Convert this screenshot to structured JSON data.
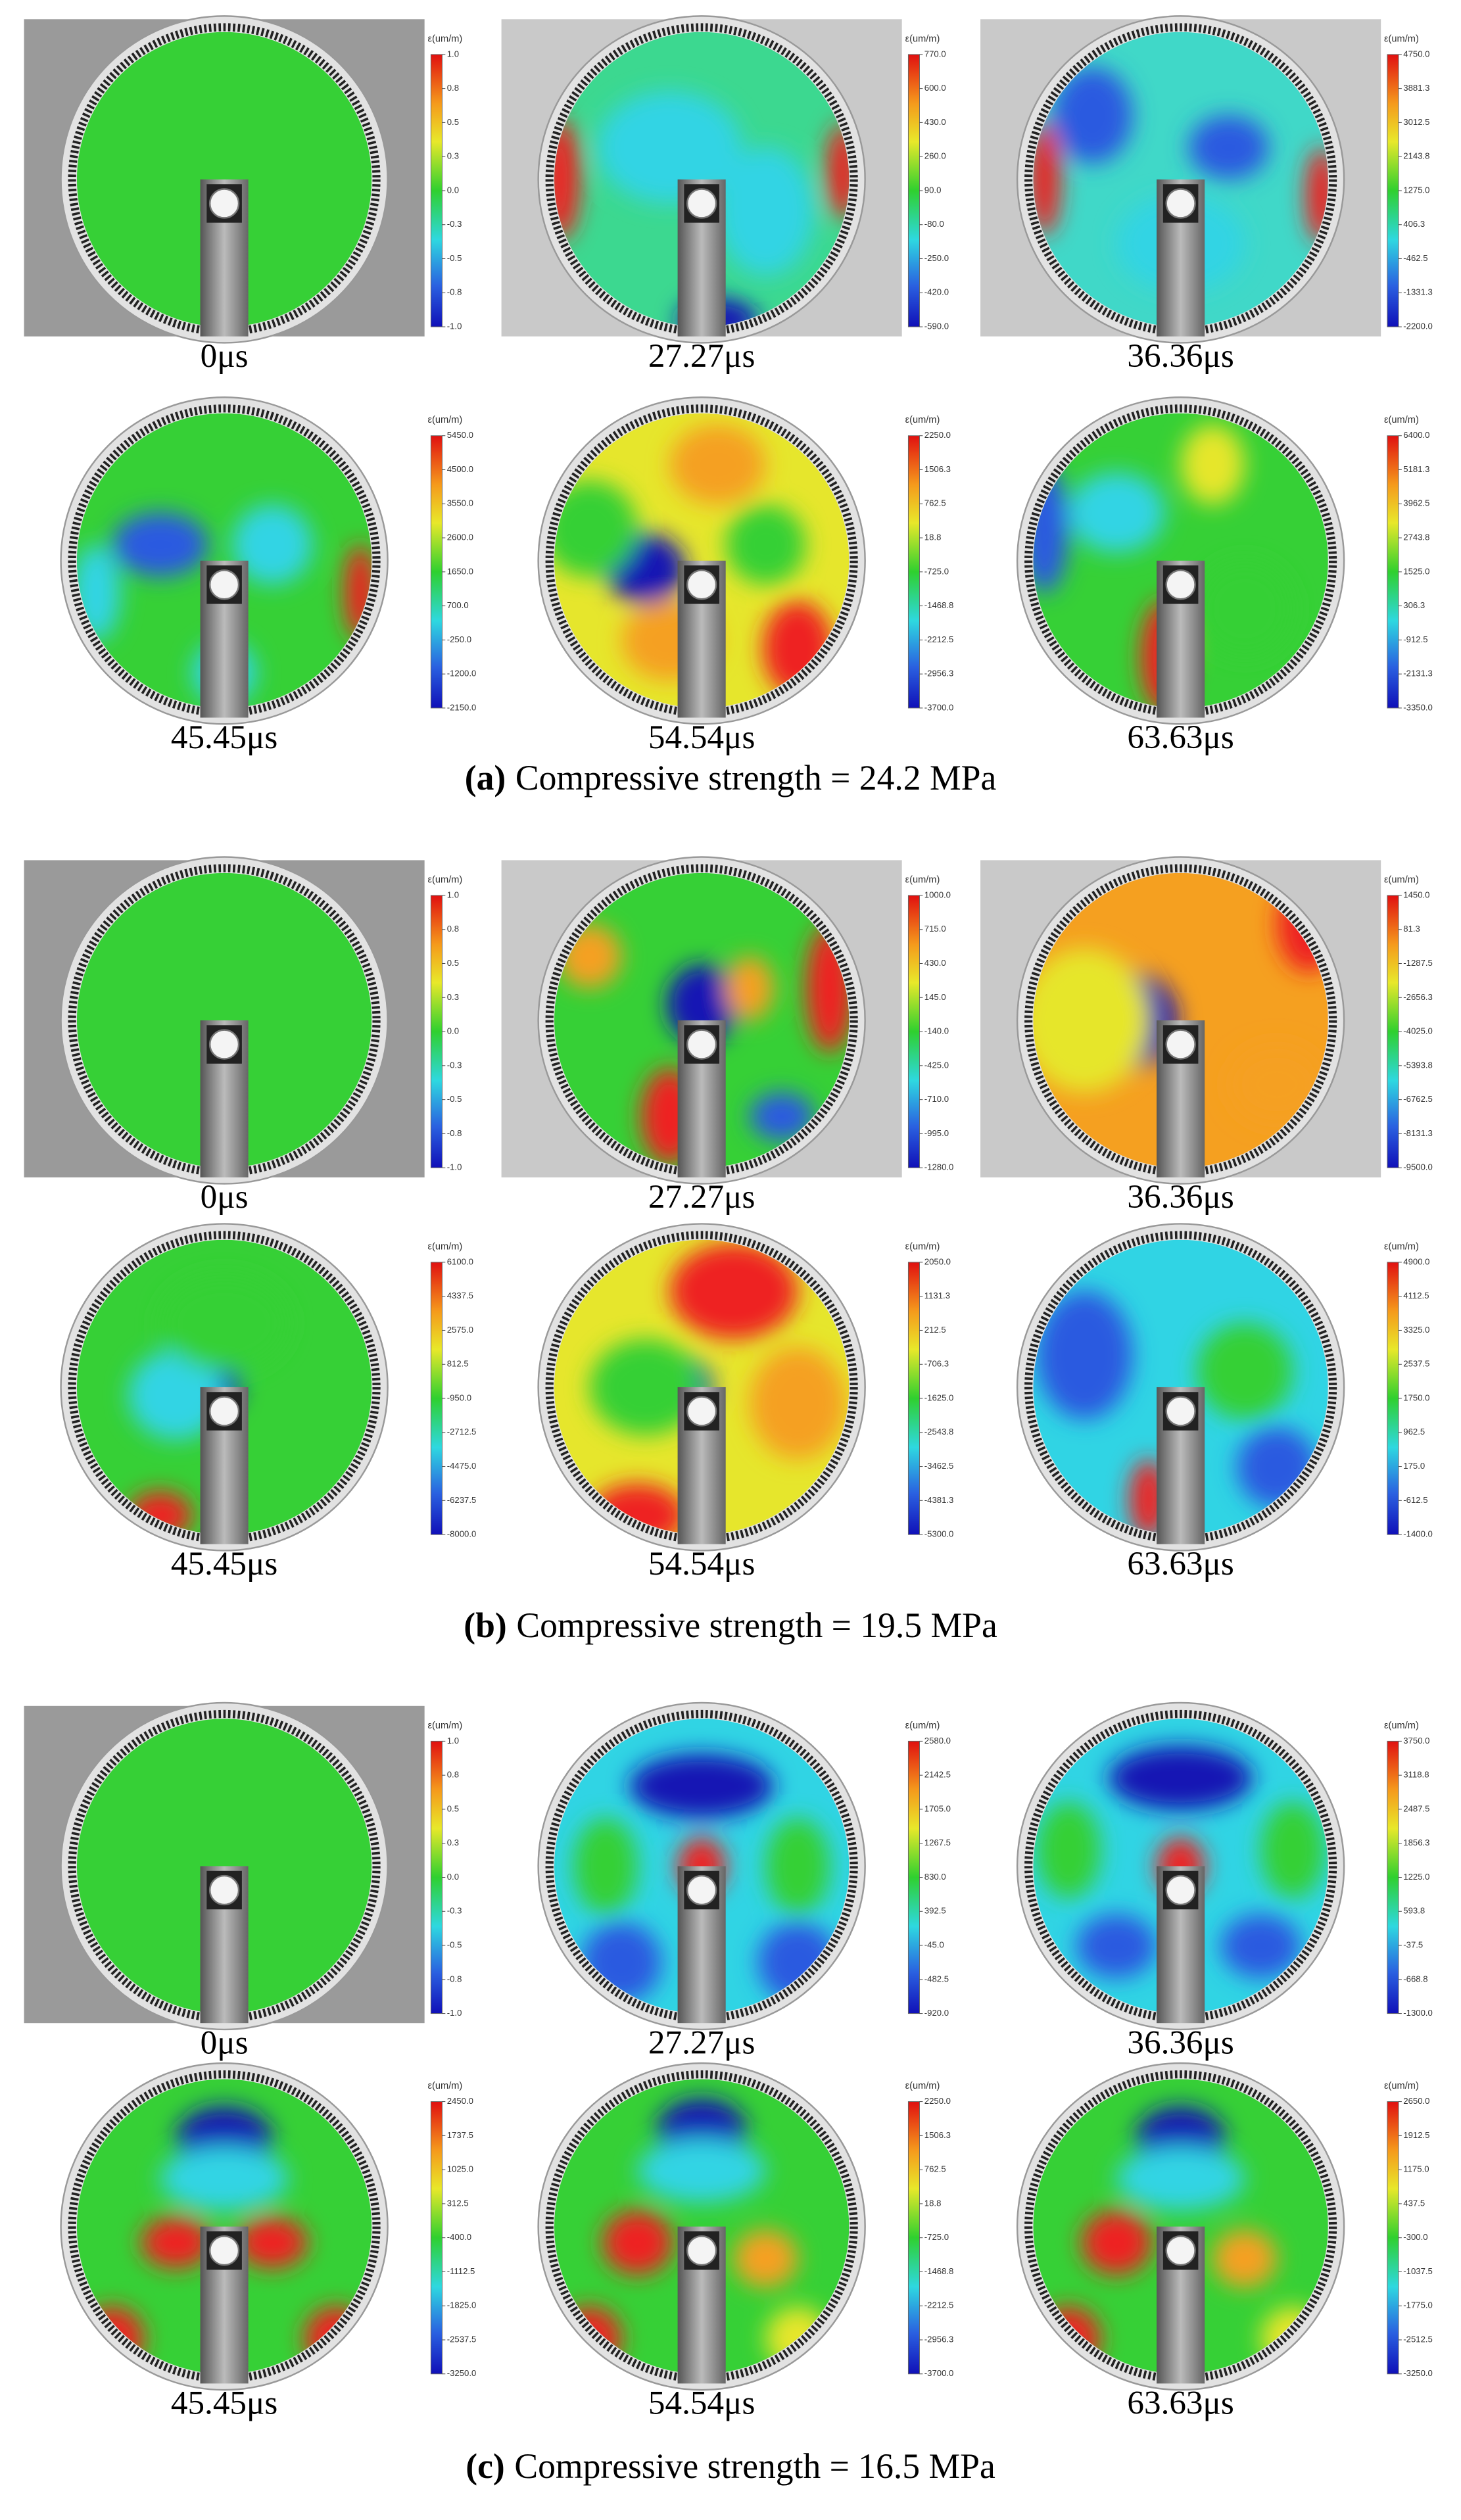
{
  "groups": [
    {
      "label": "(a)",
      "caption": "Compressive strength = 24.2 MPa",
      "panels": [
        {
          "time": "0μs",
          "colorbar_title": "ε(um/m)",
          "colorbar_ticks": [
            "1.0",
            "0.8",
            "0.5",
            "0.3",
            "0.0",
            "-0.3",
            "-0.5",
            "-0.8",
            "-1.0"
          ]
        },
        {
          "time": "27.27μs",
          "colorbar_title": "ε(um/m)",
          "colorbar_ticks": [
            "770.0",
            "600.0",
            "430.0",
            "260.0",
            "90.0",
            "-80.0",
            "-250.0",
            "-420.0",
            "-590.0"
          ]
        },
        {
          "time": "36.36μs",
          "colorbar_title": "ε(um/m)",
          "colorbar_ticks": [
            "4750.0",
            "3881.3",
            "3012.5",
            "2143.8",
            "1275.0",
            "406.3",
            "-462.5",
            "-1331.3",
            "-2200.0"
          ]
        },
        {
          "time": "45.45μs",
          "colorbar_title": "ε(um/m)",
          "colorbar_ticks": [
            "5450.0",
            "4500.0",
            "3550.0",
            "2600.0",
            "1650.0",
            "700.0",
            "-250.0",
            "-1200.0",
            "-2150.0"
          ]
        },
        {
          "time": "54.54μs",
          "colorbar_title": "ε(um/m)",
          "colorbar_ticks": [
            "2250.0",
            "1506.3",
            "762.5",
            "18.8",
            "-725.0",
            "-1468.8",
            "-2212.5",
            "-2956.3",
            "-3700.0"
          ]
        },
        {
          "time": "63.63μs",
          "colorbar_title": "ε(um/m)",
          "colorbar_ticks": [
            "6400.0",
            "5181.3",
            "3962.5",
            "2743.8",
            "1525.0",
            "306.3",
            "-912.5",
            "-2131.3",
            "-3350.0"
          ]
        }
      ]
    },
    {
      "label": "(b)",
      "caption": "Compressive strength = 19.5 MPa",
      "panels": [
        {
          "time": "0μs",
          "colorbar_title": "ε(um/m)",
          "colorbar_ticks": [
            "1.0",
            "0.8",
            "0.5",
            "0.3",
            "0.0",
            "-0.3",
            "-0.5",
            "-0.8",
            "-1.0"
          ]
        },
        {
          "time": "27.27μs",
          "colorbar_title": "ε(um/m)",
          "colorbar_ticks": [
            "1000.0",
            "715.0",
            "430.0",
            "145.0",
            "-140.0",
            "-425.0",
            "-710.0",
            "-995.0",
            "-1280.0"
          ]
        },
        {
          "time": "36.36μs",
          "colorbar_title": "ε(um/m)",
          "colorbar_ticks": [
            "1450.0",
            "81.3",
            "-1287.5",
            "-2656.3",
            "-4025.0",
            "-5393.8",
            "-6762.5",
            "-8131.3",
            "-9500.0"
          ]
        },
        {
          "time": "45.45μs",
          "colorbar_title": "ε(um/m)",
          "colorbar_ticks": [
            "6100.0",
            "4337.5",
            "2575.0",
            "812.5",
            "-950.0",
            "-2712.5",
            "-4475.0",
            "-6237.5",
            "-8000.0"
          ]
        },
        {
          "time": "54.54μs",
          "colorbar_title": "ε(um/m)",
          "colorbar_ticks": [
            "2050.0",
            "1131.3",
            "212.5",
            "-706.3",
            "-1625.0",
            "-2543.8",
            "-3462.5",
            "-4381.3",
            "-5300.0"
          ]
        },
        {
          "time": "63.63μs",
          "colorbar_title": "ε(um/m)",
          "colorbar_ticks": [
            "4900.0",
            "4112.5",
            "3325.0",
            "2537.5",
            "1750.0",
            "962.5",
            "175.0",
            "-612.5",
            "-1400.0"
          ]
        }
      ]
    },
    {
      "label": "(c)",
      "caption": "Compressive strength = 16.5 MPa",
      "panels": [
        {
          "time": "0μs",
          "colorbar_title": "ε(um/m)",
          "colorbar_ticks": [
            "1.0",
            "0.8",
            "0.5",
            "0.3",
            "0.0",
            "-0.3",
            "-0.5",
            "-0.8",
            "-1.0"
          ]
        },
        {
          "time": "27.27μs",
          "colorbar_title": "ε(um/m)",
          "colorbar_ticks": [
            "2580.0",
            "2142.5",
            "1705.0",
            "1267.5",
            "830.0",
            "392.5",
            "-45.0",
            "-482.5",
            "-920.0"
          ]
        },
        {
          "time": "36.36μs",
          "colorbar_title": "ε(um/m)",
          "colorbar_ticks": [
            "3750.0",
            "3118.8",
            "2487.5",
            "1856.3",
            "1225.0",
            "593.8",
            "-37.5",
            "-668.8",
            "-1300.0"
          ]
        },
        {
          "time": "45.45μs",
          "colorbar_title": "ε(um/m)",
          "colorbar_ticks": [
            "2450.0",
            "1737.5",
            "1025.0",
            "312.5",
            "-400.0",
            "-1112.5",
            "-1825.0",
            "-2537.5",
            "-3250.0"
          ]
        },
        {
          "time": "54.54μs",
          "colorbar_title": "ε(um/m)",
          "colorbar_ticks": [
            "2250.0",
            "1506.3",
            "762.5",
            "18.8",
            "-725.0",
            "-1468.8",
            "-2212.5",
            "-2956.3",
            "-3700.0"
          ]
        },
        {
          "time": "63.63μs",
          "colorbar_title": "ε(um/m)",
          "colorbar_ticks": [
            "2650.0",
            "1912.5",
            "1175.0",
            "437.5",
            "-300.0",
            "-1037.5",
            "-1775.0",
            "-2512.5",
            "-3250.0"
          ]
        }
      ]
    }
  ]
}
